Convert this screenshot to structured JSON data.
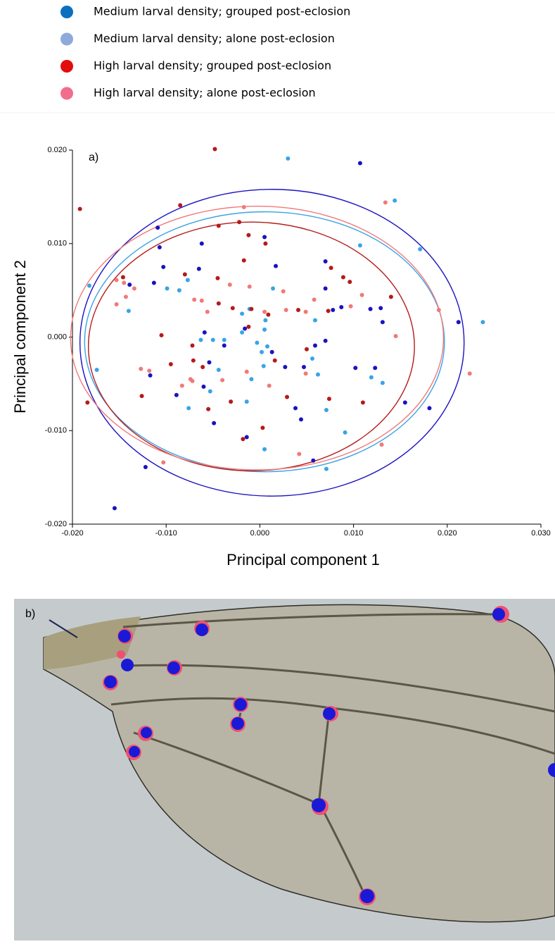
{
  "chart_data": {
    "type": "scatter",
    "annotation": "a)",
    "xlabel": "Principal component 1",
    "ylabel": "Principal component 2",
    "xlim": [
      -0.02,
      0.03
    ],
    "ylim": [
      -0.02,
      0.02
    ],
    "xticks": [
      {
        "value": -0.02,
        "label": "-0.020"
      },
      {
        "value": -0.01,
        "label": "-0.010"
      },
      {
        "value": 0,
        "label": "0.000"
      },
      {
        "value": 0.01,
        "label": "0.010"
      },
      {
        "value": 0.02,
        "label": "0.020"
      },
      {
        "value": 0.03,
        "label": "0.030"
      }
    ],
    "yticks": [
      {
        "value": -0.02,
        "label": "-0.020"
      },
      {
        "value": -0.01,
        "label": "-0.010"
      },
      {
        "value": 0,
        "label": "0.000"
      },
      {
        "value": 0.01,
        "label": "0.010"
      },
      {
        "value": 0.02,
        "label": "0.020"
      }
    ],
    "series": [
      {
        "name": "Medium larval density; grouped post-eclosion",
        "color": "#1a12c0",
        "legend_color": "#0b6fc0",
        "ellipse": {
          "cx": 0.0013,
          "cy": -0.0006,
          "rx": 0.0205,
          "ry": 0.0164
        },
        "x": [
          0.0107,
          -0.0109,
          -0.0062,
          0.0005,
          -0.0107,
          -0.0103,
          -0.0065,
          0.0017,
          -0.0139,
          -0.0113,
          0.007,
          0.007,
          0.0078,
          0.0087,
          0.0118,
          0.0129,
          0.0131,
          0.0212,
          -0.0059,
          -0.0038,
          -0.0016,
          0.0027,
          0.0047,
          0.0059,
          0.007,
          0.0102,
          0.0123,
          -0.0054,
          -0.0117,
          -0.0089,
          -0.006,
          -0.0049,
          0.0038,
          0.0044,
          0.0181,
          0.0155,
          -0.0014,
          0.0057,
          -0.0122,
          -0.0155,
          0.0013
        ],
        "values": [
          0.0186,
          0.0117,
          0.01,
          0.0107,
          0.0096,
          0.0075,
          0.0073,
          0.0076,
          0.0056,
          0.0058,
          0.0081,
          0.0052,
          0.0029,
          0.0032,
          0.003,
          0.0031,
          0.0016,
          0.0016,
          0.0005,
          -0.0009,
          0.0009,
          -0.0032,
          -0.0032,
          -0.0009,
          -0.0004,
          -0.0033,
          -0.0033,
          -0.0027,
          -0.0041,
          -0.0062,
          -0.0053,
          -0.0092,
          -0.0076,
          -0.0088,
          -0.0076,
          -0.007,
          -0.0107,
          -0.0132,
          -0.0139,
          -0.0183,
          -0.0016
        ]
      },
      {
        "name": "Medium larval density; alone post-eclosion",
        "color": "#3ba3e6",
        "legend_color": "#8eaadc",
        "ellipse": {
          "cx": 0.0005,
          "cy": -0.0005,
          "rx": 0.0192,
          "ry": 0.0139
        },
        "x": [
          0.003,
          0.0144,
          0.0107,
          0.0171,
          -0.0182,
          -0.014,
          -0.0099,
          -0.0086,
          -0.0077,
          -0.0011,
          0.0014,
          0.0006,
          0.0005,
          -0.0019,
          -0.005,
          -0.0063,
          -0.0038,
          -0.0019,
          -0.0003,
          0.0008,
          0.0004,
          -0.0044,
          -0.0053,
          -0.0076,
          -0.0174,
          -0.0014,
          -0.0009,
          0.0056,
          0.0062,
          0.0071,
          0.0119,
          0.0131,
          0.0091,
          0.0071,
          0.0005,
          0.0238,
          0.0059,
          0.0002
        ],
        "values": [
          0.0191,
          0.0146,
          0.0098,
          0.0094,
          0.0055,
          0.0028,
          0.0052,
          0.005,
          0.0061,
          0.003,
          0.0052,
          0.0018,
          0.0008,
          0.0025,
          -0.0003,
          -0.0003,
          -0.0003,
          0.0005,
          -0.0006,
          -0.001,
          -0.0031,
          -0.0035,
          -0.0058,
          -0.0076,
          -0.0035,
          -0.0069,
          -0.0045,
          -0.0023,
          -0.004,
          -0.0078,
          -0.0043,
          -0.0049,
          -0.0102,
          -0.0141,
          -0.012,
          0.0016,
          0.0018,
          -0.0016
        ]
      },
      {
        "name": "High larval density; grouped post-eclosion",
        "color": "#b51a1a",
        "legend_color": "#e30b0b",
        "ellipse": {
          "cx": -0.0009,
          "cy": -0.001,
          "rx": 0.0174,
          "ry": 0.0133
        },
        "x": [
          -0.0048,
          -0.0192,
          -0.0085,
          -0.0044,
          -0.0022,
          -0.0012,
          0.0006,
          -0.008,
          -0.0146,
          -0.0045,
          -0.0017,
          0.0076,
          0.0089,
          0.0096,
          -0.0044,
          -0.0029,
          -0.0009,
          0.0041,
          0.0073,
          0.014,
          -0.0105,
          -0.0072,
          -0.0071,
          -0.0061,
          -0.0095,
          -0.0126,
          -0.0184,
          -0.0055,
          -0.0031,
          0.0016,
          0.0029,
          0.0074,
          0.011,
          -0.0018,
          0.0003,
          -0.0012,
          0.0009,
          0.005
        ],
        "values": [
          0.0201,
          0.0137,
          0.0141,
          0.0119,
          0.0123,
          0.0109,
          0.01,
          0.0067,
          0.0064,
          0.0063,
          0.0082,
          0.0074,
          0.0064,
          0.0059,
          0.0036,
          0.0031,
          0.003,
          0.0029,
          0.0028,
          0.0043,
          0.0002,
          -0.0009,
          -0.0025,
          -0.0032,
          -0.0029,
          -0.0063,
          -0.007,
          -0.0077,
          -0.0069,
          -0.0025,
          -0.0064,
          -0.0066,
          -0.007,
          -0.0109,
          -0.0097,
          0.0011,
          0.0024,
          -0.0013
        ]
      },
      {
        "name": "High larval density; alone post-eclosion",
        "color": "#f07a78",
        "legend_color": "#f26d8d",
        "ellipse": {
          "cx": -0.0003,
          "cy": -0.0001,
          "rx": 0.0199,
          "ry": 0.0141
        },
        "x": [
          -0.0017,
          -0.0145,
          -0.0134,
          -0.0143,
          -0.0153,
          -0.0153,
          -0.0062,
          -0.0056,
          -0.007,
          -0.0032,
          -0.0011,
          0.0025,
          0.0028,
          0.0058,
          0.0097,
          0.0109,
          0.0049,
          0.0005,
          -0.0127,
          -0.0118,
          -0.0074,
          -0.0072,
          -0.0083,
          -0.004,
          -0.0014,
          0.001,
          0.0049,
          0.0145,
          0.0191,
          0.0224,
          0.013,
          -0.0103,
          0.0042,
          0.0134
        ],
        "values": [
          0.0139,
          0.0058,
          0.0052,
          0.0043,
          0.0061,
          0.0035,
          0.0039,
          0.0027,
          0.004,
          0.0056,
          0.0054,
          0.0049,
          0.0029,
          0.004,
          0.0033,
          0.0045,
          0.0027,
          0.0027,
          -0.0034,
          -0.0036,
          -0.0045,
          -0.0047,
          -0.0052,
          -0.0046,
          -0.0037,
          -0.0052,
          -0.0039,
          0.0001,
          0.0029,
          -0.0039,
          -0.0115,
          -0.0134,
          -0.0125,
          0.0144
        ]
      }
    ]
  },
  "photo": {
    "label": "b)"
  }
}
